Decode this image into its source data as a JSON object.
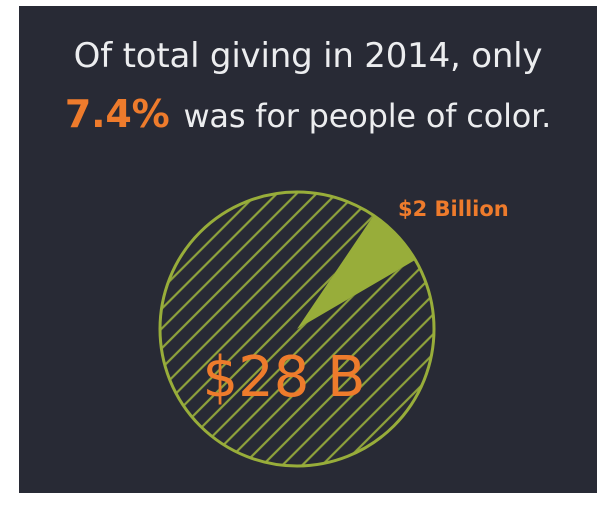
{
  "headline": {
    "line1": "Of total giving in 2014, only",
    "highlight": "7.4%",
    "line2_rest": "was for people of color."
  },
  "colors": {
    "background": "#282a35",
    "accent_orange": "#ee7b2c",
    "pie_green": "#98ad3a",
    "headline_text": "#ecedef"
  },
  "chart_data": {
    "type": "pie",
    "total_label": "$28 B",
    "total_value": 28,
    "unit": "billion USD",
    "slices": [
      {
        "label": "$2 Billion",
        "value": 2,
        "style": "solid"
      },
      {
        "value": 26,
        "style": "hatched"
      }
    ]
  }
}
